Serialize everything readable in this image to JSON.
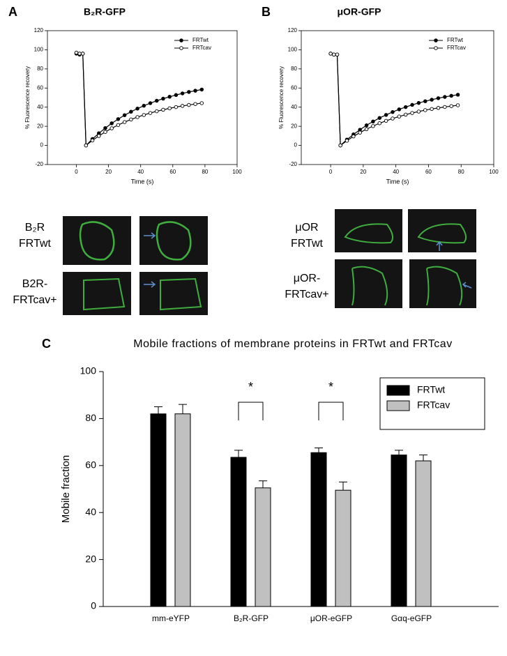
{
  "chart_data": [
    {
      "type": "line",
      "panel": "A",
      "title": "B₂R-GFP",
      "xlabel": "Time (s)",
      "ylabel": "% Fluorescence recovery",
      "x": [
        0,
        2,
        4,
        6,
        10,
        14,
        18,
        22,
        26,
        30,
        34,
        38,
        42,
        46,
        50,
        54,
        58,
        62,
        66,
        70,
        74,
        78
      ],
      "series": [
        {
          "name": "FRTwt",
          "color": "#000000",
          "marker": "filled",
          "values": [
            96,
            95,
            96,
            0,
            6.7,
            12.7,
            18.1,
            23.1,
            27.5,
            31.6,
            35.2,
            38.5,
            41.5,
            44.2,
            46.7,
            48.9,
            50.9,
            52.7,
            54.4,
            55.9,
            57.2,
            58.4
          ]
        },
        {
          "name": "FRTcav",
          "color": "#000000",
          "marker": "open",
          "values": [
            97,
            96,
            96,
            0,
            5.2,
            9.9,
            14.1,
            17.9,
            21.3,
            24.4,
            27.1,
            29.6,
            31.8,
            33.9,
            35.7,
            37.3,
            38.8,
            40.1,
            41.3,
            42.3,
            43.3,
            44.2
          ]
        }
      ],
      "xlim": [
        -18,
        100
      ],
      "xticks": [
        0,
        20,
        40,
        60,
        80,
        100
      ],
      "ylim": [
        -20,
        120
      ],
      "yticks": [
        -20,
        0,
        20,
        40,
        60,
        80,
        100,
        120
      ],
      "legend": "upper right"
    },
    {
      "type": "line",
      "panel": "B",
      "title": "μOR-GFP",
      "xlabel": "Time (s)",
      "ylabel": "% Fluorescence recovery",
      "x": [
        0,
        2,
        4,
        6,
        10,
        14,
        18,
        22,
        26,
        30,
        34,
        38,
        42,
        46,
        50,
        54,
        58,
        62,
        66,
        70,
        74,
        78
      ],
      "series": [
        {
          "name": "FRTwt",
          "color": "#000000",
          "marker": "filled",
          "values": [
            96,
            95,
            95,
            0,
            6.1,
            11.5,
            16.4,
            21.0,
            25.0,
            28.7,
            31.9,
            34.9,
            37.7,
            40.1,
            42.4,
            44.4,
            46.2,
            47.8,
            49.4,
            50.7,
            51.9,
            53.0
          ]
        },
        {
          "name": "FRTcav",
          "color": "#000000",
          "marker": "open",
          "values": [
            96,
            95,
            95,
            0,
            4.9,
            9.4,
            13.4,
            17.0,
            20.2,
            23.2,
            25.7,
            28.1,
            30.2,
            32.2,
            33.9,
            35.4,
            36.9,
            38.1,
            39.2,
            40.2,
            41.1,
            42.0
          ]
        }
      ],
      "xlim": [
        -18,
        100
      ],
      "xticks": [
        0,
        20,
        40,
        60,
        80,
        100
      ],
      "ylim": [
        -20,
        120
      ],
      "yticks": [
        -20,
        0,
        20,
        40,
        60,
        80,
        100,
        120
      ],
      "legend": "upper right"
    },
    {
      "type": "bar",
      "panel": "C",
      "title": "Mobile fractions of membrane proteins in FRTwt and FRTcav",
      "ylabel": "Mobile fraction",
      "categories": [
        "mm-eYFP",
        "B₂R-GFP",
        "μOR-eGFP",
        "Gαq-eGFP"
      ],
      "series": [
        {
          "name": "FRTwt",
          "color": "#000000",
          "values": [
            82,
            63.5,
            65.5,
            64.5
          ],
          "errors": [
            3,
            3,
            2,
            2
          ]
        },
        {
          "name": "FRTcav",
          "color": "#c0c0c0",
          "values": [
            82,
            50.5,
            49.5,
            62
          ],
          "errors": [
            4,
            3,
            3.5,
            2.5
          ]
        }
      ],
      "ylim": [
        0,
        100
      ],
      "yticks": [
        0,
        20,
        40,
        60,
        80,
        100
      ],
      "legend": "upper right",
      "annotations": [
        "*",
        "*"
      ]
    }
  ],
  "micrographs": [
    [
      "B₂R",
      "FRTwt"
    ],
    [
      "B2R-",
      "FRTcav+"
    ],
    [
      "μOR",
      "FRTwt"
    ],
    [
      "μOR-",
      "FRTcav+"
    ]
  ]
}
